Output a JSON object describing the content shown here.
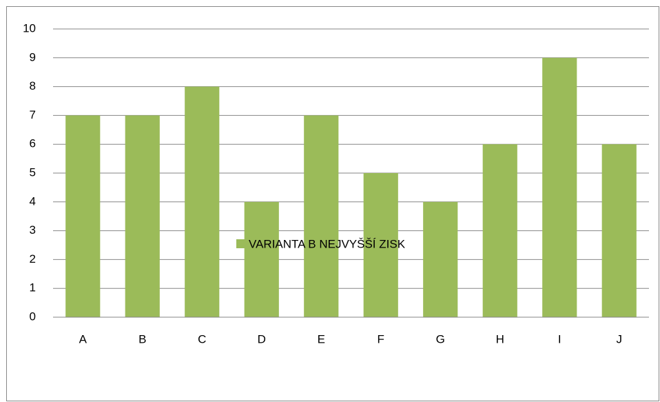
{
  "chart_data": {
    "type": "bar",
    "categories": [
      "A",
      "B",
      "C",
      "D",
      "E",
      "F",
      "G",
      "H",
      "I",
      "J"
    ],
    "series": [
      {
        "name": "VARIANTA B NEJVYŠŠÍ ZISK",
        "color": "#9bbb59",
        "values": [
          7,
          7,
          8,
          4,
          7,
          5,
          4,
          6,
          9,
          6
        ]
      }
    ],
    "ylim": [
      0,
      10
    ],
    "yticks": [
      0,
      1,
      2,
      3,
      4,
      5,
      6,
      7,
      8,
      9,
      10
    ],
    "grid": true,
    "legend": "bottom"
  }
}
